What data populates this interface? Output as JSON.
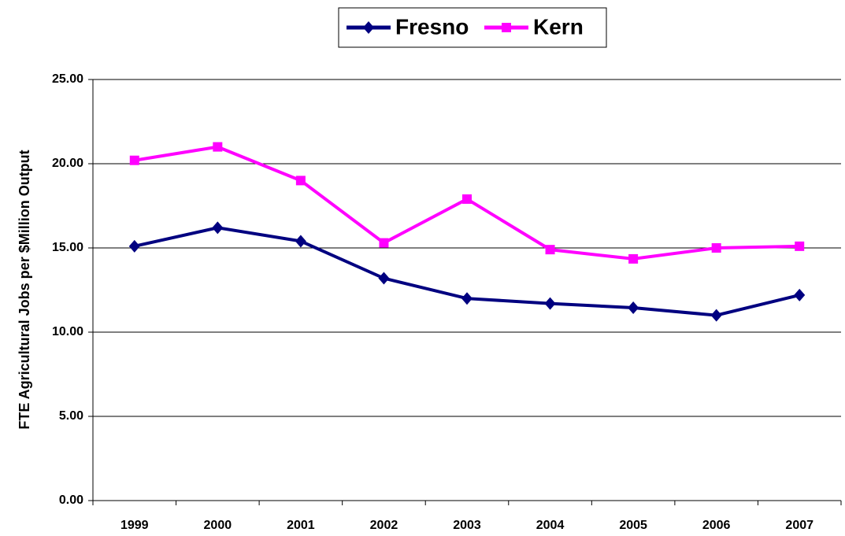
{
  "chart_data": {
    "type": "line",
    "y_label": "FTE Agricultural Jobs per $Million Output",
    "categories": [
      "1999",
      "2000",
      "2001",
      "2002",
      "2003",
      "2004",
      "2005",
      "2006",
      "2007"
    ],
    "series": [
      {
        "name": "Fresno",
        "color": "#000080",
        "marker": "diamond",
        "values": [
          15.1,
          16.2,
          15.4,
          13.2,
          12.0,
          11.7,
          11.45,
          11.0,
          12.2
        ]
      },
      {
        "name": "Kern",
        "color": "#ff00ff",
        "marker": "square",
        "values": [
          20.2,
          21.0,
          19.0,
          15.3,
          17.9,
          14.9,
          14.35,
          15.0,
          15.1
        ]
      }
    ],
    "ylim": [
      0,
      25
    ],
    "yticks": [
      {
        "value": 0,
        "label": "0.00"
      },
      {
        "value": 5,
        "label": "5.00"
      },
      {
        "value": 10,
        "label": "10.00"
      },
      {
        "value": 15,
        "label": "15.00"
      },
      {
        "value": 20,
        "label": "20.00"
      },
      {
        "value": 25,
        "label": "25.00"
      }
    ],
    "grid": true,
    "legend": "top"
  }
}
